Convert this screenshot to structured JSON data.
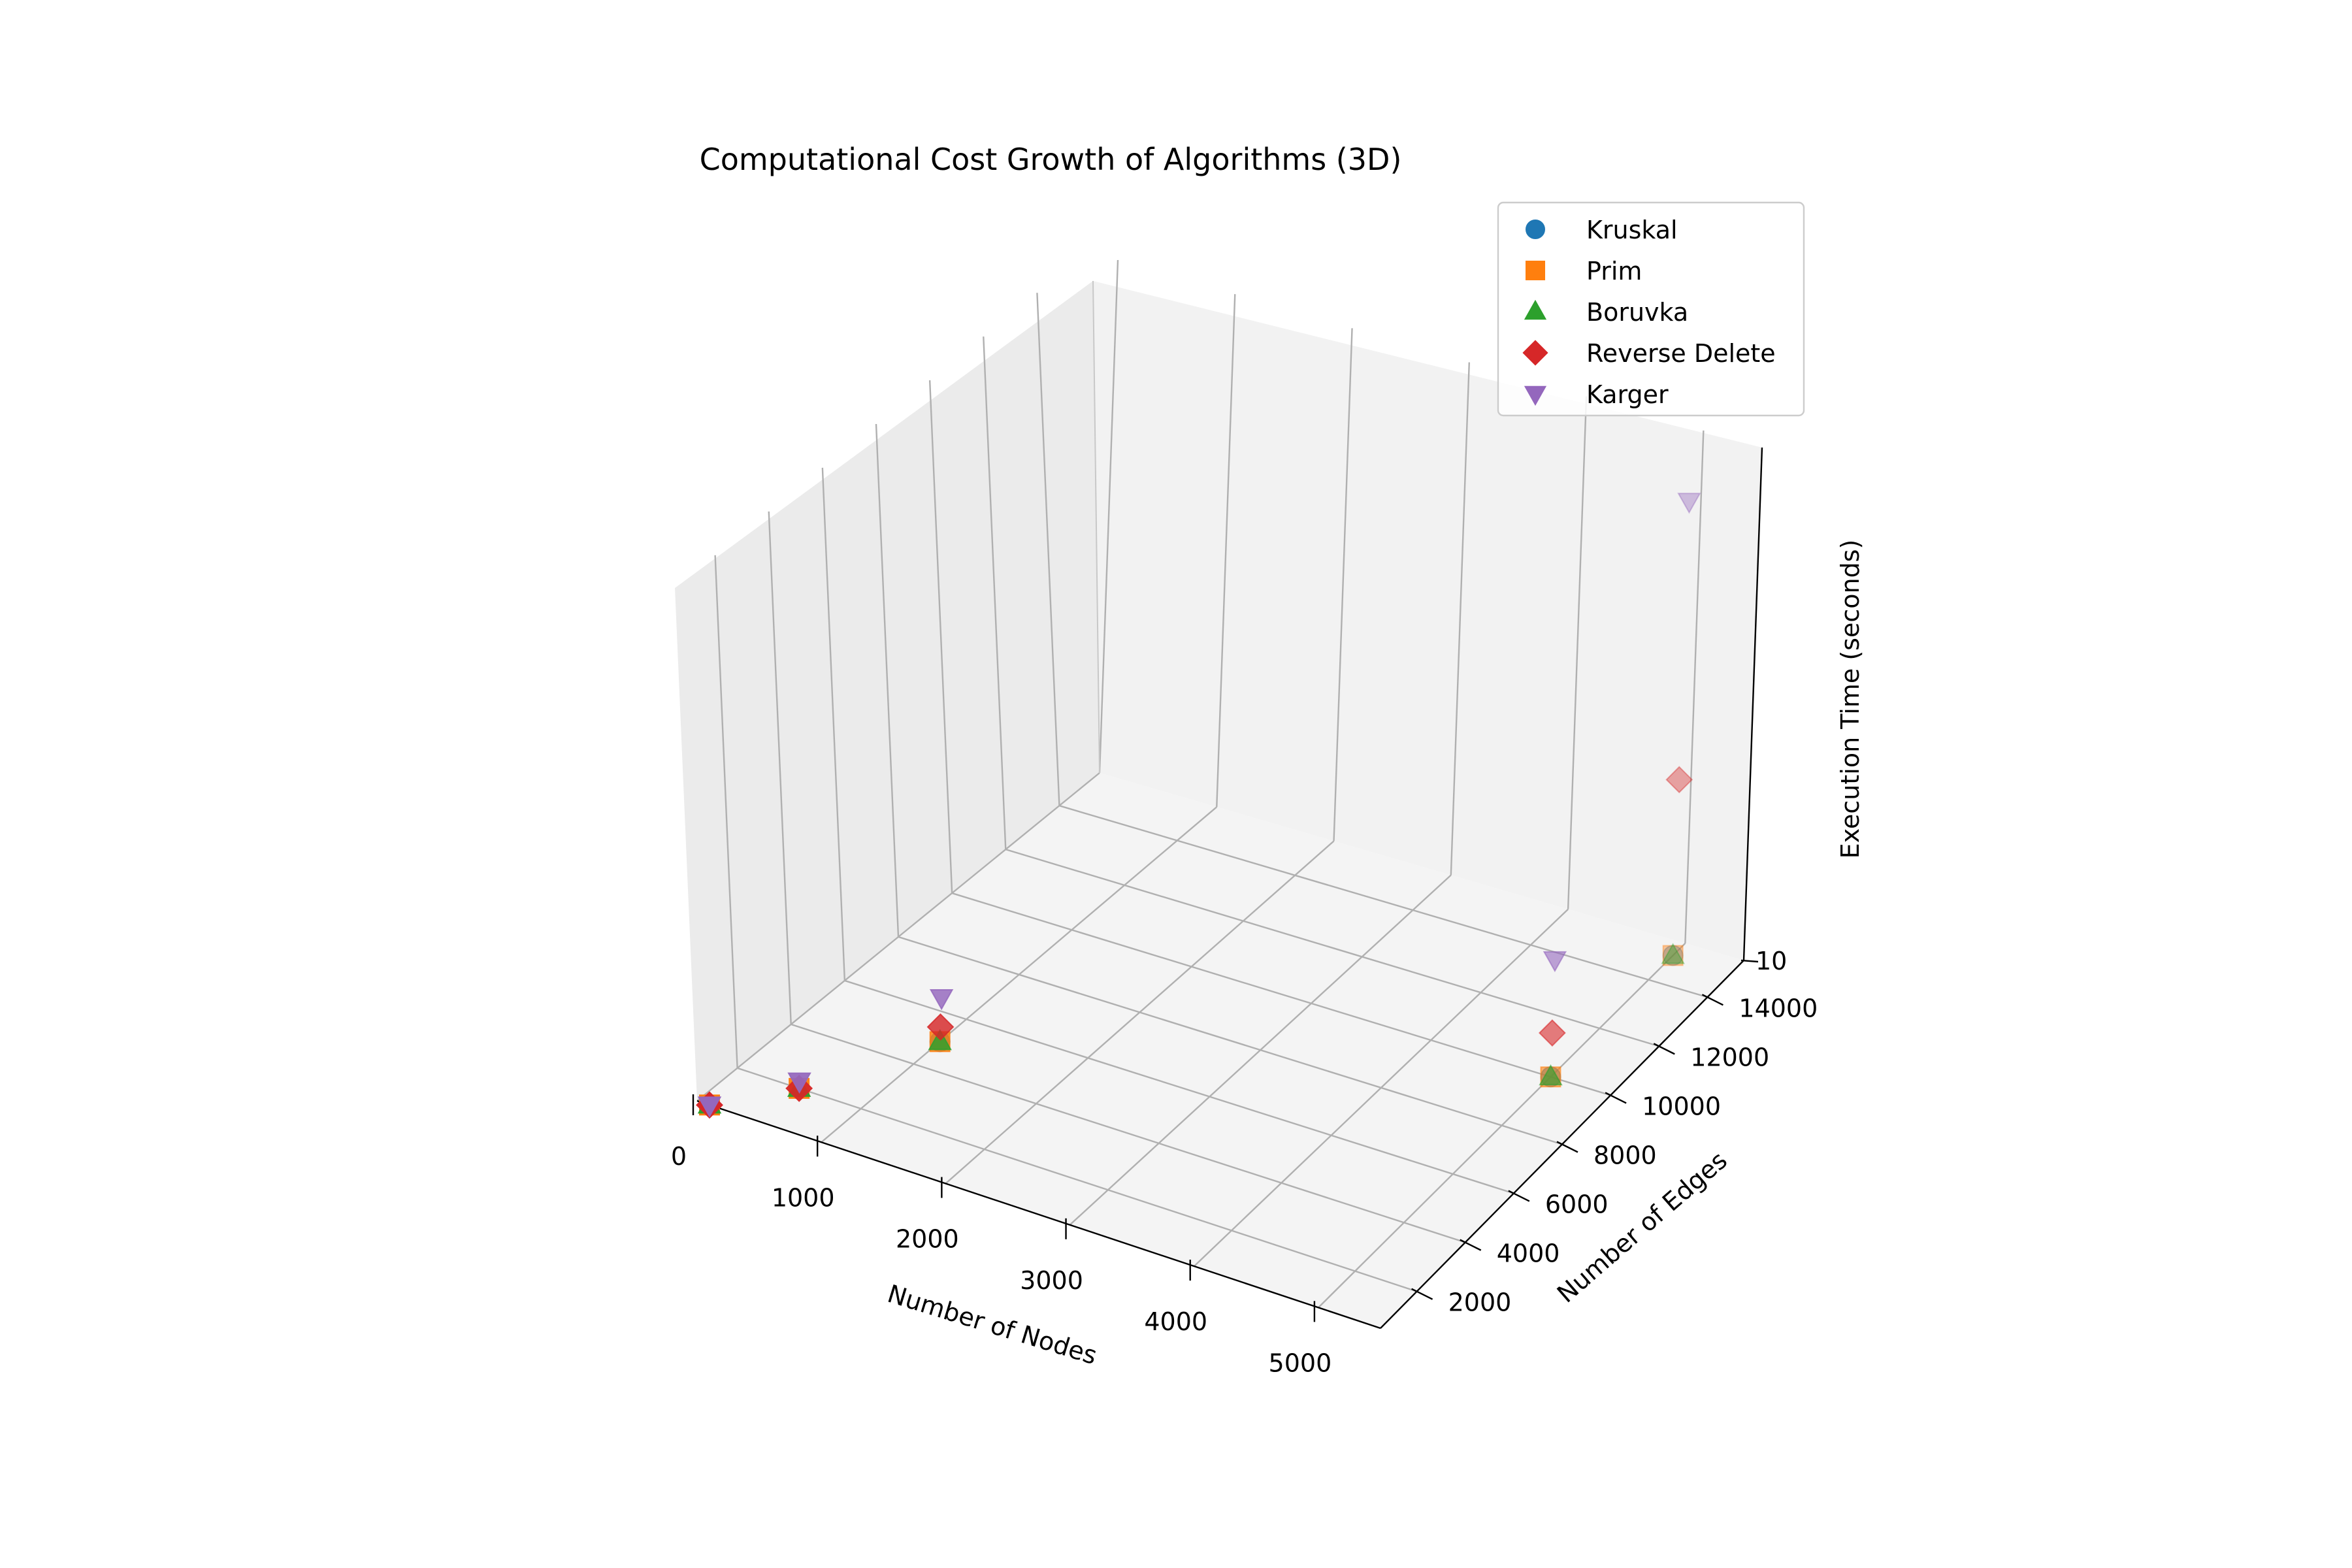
{
  "chart_data": {
    "type": "scatter",
    "title": "Computational Cost Growth of Algorithms (3D)",
    "xlabel": "Number of Nodes",
    "ylabel": "Number of Edges",
    "zlabel": "Execution Time (seconds)",
    "xlim": [
      0,
      5500
    ],
    "ylim": [
      500,
      15500
    ],
    "x_ticks": [
      "0",
      "1000",
      "2000",
      "3000",
      "4000",
      "5000"
    ],
    "y_ticks": [
      "2000",
      "4000",
      "6000",
      "8000",
      "10000",
      "12000",
      "14000"
    ],
    "z_ticks": [
      "10"
    ],
    "legend_position": "top-right",
    "grid": true,
    "series": [
      {
        "name": "Kruskal",
        "marker": "circle",
        "color": "#1f77b4",
        "points": [
          [
            100,
            500,
            0.0
          ],
          [
            500,
            2000,
            0.0
          ],
          [
            1000,
            5000,
            0.0
          ],
          [
            5000,
            10000,
            0.0
          ],
          [
            5000,
            15000,
            0.0
          ]
        ]
      },
      {
        "name": "Prim",
        "marker": "square",
        "color": "#ff7f0e",
        "points": [
          [
            100,
            500,
            0.0
          ],
          [
            500,
            2000,
            0.0
          ],
          [
            1000,
            5000,
            0.0
          ],
          [
            5000,
            10000,
            0.0
          ],
          [
            5000,
            15000,
            0.0
          ]
        ]
      },
      {
        "name": "Boruvka",
        "marker": "triangle-up",
        "color": "#2ca02c",
        "points": [
          [
            100,
            500,
            0.0
          ],
          [
            500,
            2000,
            0.0
          ],
          [
            1000,
            5000,
            0.0
          ],
          [
            5000,
            10000,
            0.0
          ],
          [
            5000,
            15000,
            0.0
          ]
        ]
      },
      {
        "name": "Reverse Delete",
        "marker": "diamond",
        "color": "#d62728",
        "points": [
          [
            100,
            500,
            0.0
          ],
          [
            500,
            2000,
            0.0
          ],
          [
            1000,
            5000,
            1.0
          ],
          [
            5000,
            10000,
            3.0
          ],
          [
            5000,
            15000,
            12.0
          ]
        ]
      },
      {
        "name": "Karger",
        "marker": "triangle-down",
        "color": "#9467bd",
        "points": [
          [
            100,
            500,
            0.0
          ],
          [
            500,
            2000,
            0.5
          ],
          [
            1000,
            5000,
            3.0
          ],
          [
            5000,
            10000,
            8.0
          ],
          [
            5000,
            15000,
            31.0
          ]
        ]
      }
    ]
  }
}
